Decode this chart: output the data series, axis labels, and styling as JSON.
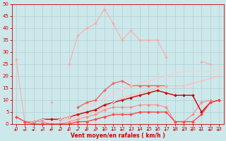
{
  "bg_color": "#cce8ea",
  "grid_color": "#b0d0d4",
  "xlabel": "Vent moyen/en rafales ( km/h )",
  "xlabel_color": "#cc0000",
  "tick_color": "#cc0000",
  "xlim": [
    -0.5,
    23.5
  ],
  "ylim": [
    0,
    50
  ],
  "yticks": [
    0,
    5,
    10,
    15,
    20,
    25,
    30,
    35,
    40,
    45,
    50
  ],
  "xticks": [
    0,
    1,
    2,
    3,
    4,
    5,
    6,
    7,
    8,
    9,
    10,
    11,
    12,
    13,
    14,
    15,
    16,
    17,
    18,
    19,
    20,
    21,
    22,
    23
  ],
  "series": [
    {
      "color": "#ffaaaa",
      "linewidth": 0.8,
      "markersize": 2.0,
      "marker": "D",
      "y": [
        27,
        0,
        null,
        null,
        9,
        null,
        25,
        37,
        40,
        42,
        48,
        42,
        35,
        39,
        35,
        35,
        35,
        28,
        null,
        null,
        null,
        26,
        25,
        null
      ]
    },
    {
      "color": "#ff8888",
      "linewidth": 0.8,
      "markersize": 2.0,
      "marker": "D",
      "y": [
        3,
        1,
        1,
        1,
        0,
        0,
        1,
        2,
        3,
        4,
        6,
        7,
        7,
        7,
        8,
        8,
        8,
        7,
        1,
        1,
        4,
        9,
        10,
        null
      ]
    },
    {
      "color": "#ee6666",
      "linewidth": 1.0,
      "markersize": 2.0,
      "marker": "D",
      "y": [
        null,
        null,
        null,
        null,
        null,
        null,
        null,
        7,
        9,
        10,
        14,
        17,
        18,
        16,
        16,
        16,
        16,
        16,
        null,
        null,
        null,
        null,
        null,
        null
      ]
    },
    {
      "color": "#cc0000",
      "linewidth": 1.0,
      "markersize": 2.0,
      "marker": "D",
      "y": [
        null,
        null,
        1,
        2,
        2,
        2,
        3,
        4,
        5,
        6,
        8,
        9,
        10,
        11,
        12,
        13,
        14,
        13,
        12,
        12,
        12,
        5,
        9,
        10
      ]
    },
    {
      "color": "#ffcccc",
      "linewidth": 0.8,
      "markersize": 1.5,
      "marker": "D",
      "y": [
        null,
        null,
        1,
        2,
        1,
        2,
        3,
        5,
        7,
        9,
        11,
        13,
        15,
        16,
        17,
        18,
        19,
        20,
        21,
        22,
        22,
        22,
        22,
        23
      ]
    },
    {
      "color": "#ffbbbb",
      "linewidth": 0.8,
      "markersize": 1.5,
      "marker": "D",
      "y": [
        null,
        null,
        null,
        null,
        null,
        1,
        2,
        3,
        4,
        5,
        7,
        9,
        11,
        12,
        13,
        14,
        15,
        16,
        16,
        16,
        17,
        18,
        19,
        20
      ]
    },
    {
      "color": "#ff4444",
      "linewidth": 1.0,
      "markersize": 2.0,
      "marker": "D",
      "y": [
        3,
        1,
        0,
        0,
        0,
        0,
        0,
        1,
        1,
        2,
        3,
        4,
        4,
        4,
        5,
        5,
        5,
        5,
        1,
        1,
        1,
        4,
        9,
        10
      ]
    }
  ]
}
